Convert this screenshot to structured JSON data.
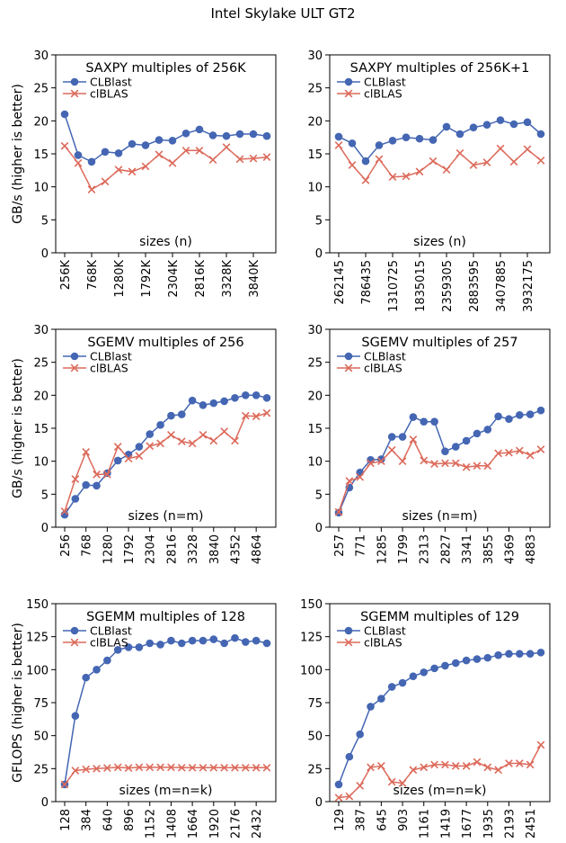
{
  "figure": {
    "title": "Intel Skylake ULT GT2",
    "colors": {
      "clblast": "#4466b3",
      "clblas": "#dc6a5b"
    }
  },
  "chart_data": [
    {
      "type": "line",
      "title": "SAXPY multiples of 256K",
      "xlabel": "sizes (n)",
      "ylabel": "GB/s (higher is better)",
      "ylim": [
        0,
        30
      ],
      "yticks": [
        0,
        5,
        10,
        15,
        20,
        25,
        30
      ],
      "xtick_labels": [
        "256K",
        "768K",
        "1280K",
        "1792K",
        "2304K",
        "2816K",
        "3328K",
        "3840K"
      ],
      "legend_position": "top-left",
      "series": [
        {
          "name": "CLBlast",
          "marker": "circle",
          "values": [
            21.0,
            14.8,
            13.8,
            15.3,
            15.1,
            16.5,
            16.3,
            17.1,
            17.0,
            18.1,
            18.7,
            17.8,
            17.7,
            18.0,
            18.0,
            17.7
          ]
        },
        {
          "name": "clBLAS",
          "marker": "x",
          "values": [
            16.2,
            13.6,
            9.6,
            10.8,
            12.6,
            12.3,
            13.1,
            14.9,
            13.6,
            15.5,
            15.5,
            14.1,
            16.0,
            14.2,
            14.3,
            14.5
          ]
        }
      ]
    },
    {
      "type": "line",
      "title": "SAXPY multiples of 256K+1",
      "xlabel": "sizes (n)",
      "ylabel": "",
      "ylim": [
        0,
        30
      ],
      "yticks": [
        0,
        5,
        10,
        15,
        20,
        25,
        30
      ],
      "xtick_labels": [
        "262145",
        "786435",
        "1310725",
        "1835015",
        "2359305",
        "2883595",
        "3407885",
        "3932175"
      ],
      "legend_position": "top-left",
      "series": [
        {
          "name": "CLBlast",
          "marker": "circle",
          "values": [
            17.6,
            16.6,
            13.9,
            16.3,
            17.0,
            17.5,
            17.3,
            17.1,
            19.1,
            18.0,
            19.0,
            19.4,
            20.1,
            19.5,
            19.8,
            18.0
          ]
        },
        {
          "name": "clBLAS",
          "marker": "x",
          "values": [
            16.3,
            13.3,
            11.0,
            14.2,
            11.5,
            11.6,
            12.3,
            13.9,
            12.6,
            15.1,
            13.3,
            13.7,
            15.8,
            13.8,
            15.7,
            14.0
          ]
        }
      ]
    },
    {
      "type": "line",
      "title": "SGEMV multiples of 256",
      "xlabel": "sizes (n=m)",
      "ylabel": "GB/s (higher is better)",
      "ylim": [
        0,
        30
      ],
      "yticks": [
        0,
        5,
        10,
        15,
        20,
        25,
        30
      ],
      "xtick_labels": [
        "256",
        "768",
        "1280",
        "1792",
        "2304",
        "2816",
        "3328",
        "3840",
        "4352",
        "4864"
      ],
      "legend_position": "top-left",
      "series": [
        {
          "name": "CLBlast",
          "marker": "circle",
          "values": [
            1.9,
            4.3,
            6.4,
            6.3,
            8.2,
            10.1,
            11.0,
            12.2,
            14.1,
            15.5,
            16.9,
            17.1,
            19.2,
            18.5,
            18.8,
            19.1,
            19.6,
            20.0,
            20.0,
            19.6
          ]
        },
        {
          "name": "clBLAS",
          "marker": "x",
          "values": [
            2.4,
            7.3,
            11.4,
            8.0,
            8.0,
            12.2,
            10.4,
            10.8,
            12.3,
            12.7,
            14.0,
            13.0,
            12.7,
            14.0,
            13.1,
            14.5,
            13.1,
            16.9,
            16.8,
            17.3
          ]
        }
      ]
    },
    {
      "type": "line",
      "title": "SGEMV multiples of 257",
      "xlabel": "sizes (n=m)",
      "ylabel": "",
      "ylim": [
        0,
        30
      ],
      "yticks": [
        0,
        5,
        10,
        15,
        20,
        25,
        30
      ],
      "xtick_labels": [
        "257",
        "771",
        "1285",
        "1799",
        "2313",
        "2827",
        "3341",
        "3855",
        "4369",
        "4883"
      ],
      "legend_position": "top-left",
      "series": [
        {
          "name": "CLBlast",
          "marker": "circle",
          "values": [
            2.2,
            6.0,
            8.3,
            10.2,
            10.3,
            13.7,
            13.7,
            16.7,
            16.0,
            16.0,
            11.5,
            12.2,
            13.1,
            14.2,
            14.8,
            16.8,
            16.4,
            17.0,
            17.1,
            17.7
          ]
        },
        {
          "name": "clBLAS",
          "marker": "x",
          "values": [
            2.3,
            7.0,
            7.6,
            9.7,
            10.0,
            11.7,
            10.0,
            13.3,
            10.1,
            9.6,
            9.7,
            9.7,
            9.1,
            9.3,
            9.3,
            11.2,
            11.3,
            11.6,
            10.9,
            11.8
          ]
        }
      ]
    },
    {
      "type": "line",
      "title": "SGEMM multiples of 128",
      "xlabel": "sizes (m=n=k)",
      "ylabel": "GFLOPS (higher is better)",
      "ylim": [
        0,
        150
      ],
      "yticks": [
        0,
        25,
        50,
        75,
        100,
        125,
        150
      ],
      "xtick_labels": [
        "128",
        "384",
        "640",
        "896",
        "1152",
        "1408",
        "1664",
        "1920",
        "2176",
        "2432"
      ],
      "legend_position": "top-left",
      "series": [
        {
          "name": "CLBlast",
          "marker": "circle",
          "values": [
            13.0,
            65.0,
            94.0,
            100.0,
            107.0,
            115.0,
            117.0,
            117.0,
            120.0,
            119.0,
            122.0,
            120.0,
            122.0,
            122.0,
            123.0,
            120.0,
            124.0,
            121.0,
            122.0,
            120.0
          ]
        },
        {
          "name": "clBLAS",
          "marker": "x",
          "values": [
            13.0,
            23.5,
            24.5,
            25.0,
            25.5,
            26.0,
            25.5,
            26.0,
            26.0,
            26.0,
            26.0,
            25.7,
            25.7,
            25.7,
            25.7,
            25.7,
            25.7,
            25.7,
            25.7,
            25.7
          ]
        }
      ]
    },
    {
      "type": "line",
      "title": "SGEMM multiples of 129",
      "xlabel": "sizes (m=n=k)",
      "ylabel": "",
      "ylim": [
        0,
        150
      ],
      "yticks": [
        0,
        25,
        50,
        75,
        100,
        125,
        150
      ],
      "xtick_labels": [
        "129",
        "387",
        "645",
        "903",
        "1161",
        "1419",
        "1677",
        "1935",
        "2193",
        "2451"
      ],
      "legend_position": "top-left",
      "series": [
        {
          "name": "CLBlast",
          "marker": "circle",
          "values": [
            13.0,
            34.0,
            51.0,
            72.0,
            78.0,
            87.0,
            90.0,
            95.0,
            98.0,
            101.0,
            103.0,
            105.0,
            107.0,
            108.0,
            109.0,
            111.0,
            112.0,
            112.0,
            112.0,
            113.0
          ]
        },
        {
          "name": "clBLAS",
          "marker": "x",
          "values": [
            3.0,
            4.0,
            12.0,
            26.0,
            27.0,
            15.0,
            14.0,
            24.0,
            26.0,
            28.0,
            28.0,
            27.0,
            27.0,
            30.0,
            26.0,
            24.0,
            29.0,
            29.0,
            28.0,
            43.0
          ]
        }
      ]
    }
  ]
}
